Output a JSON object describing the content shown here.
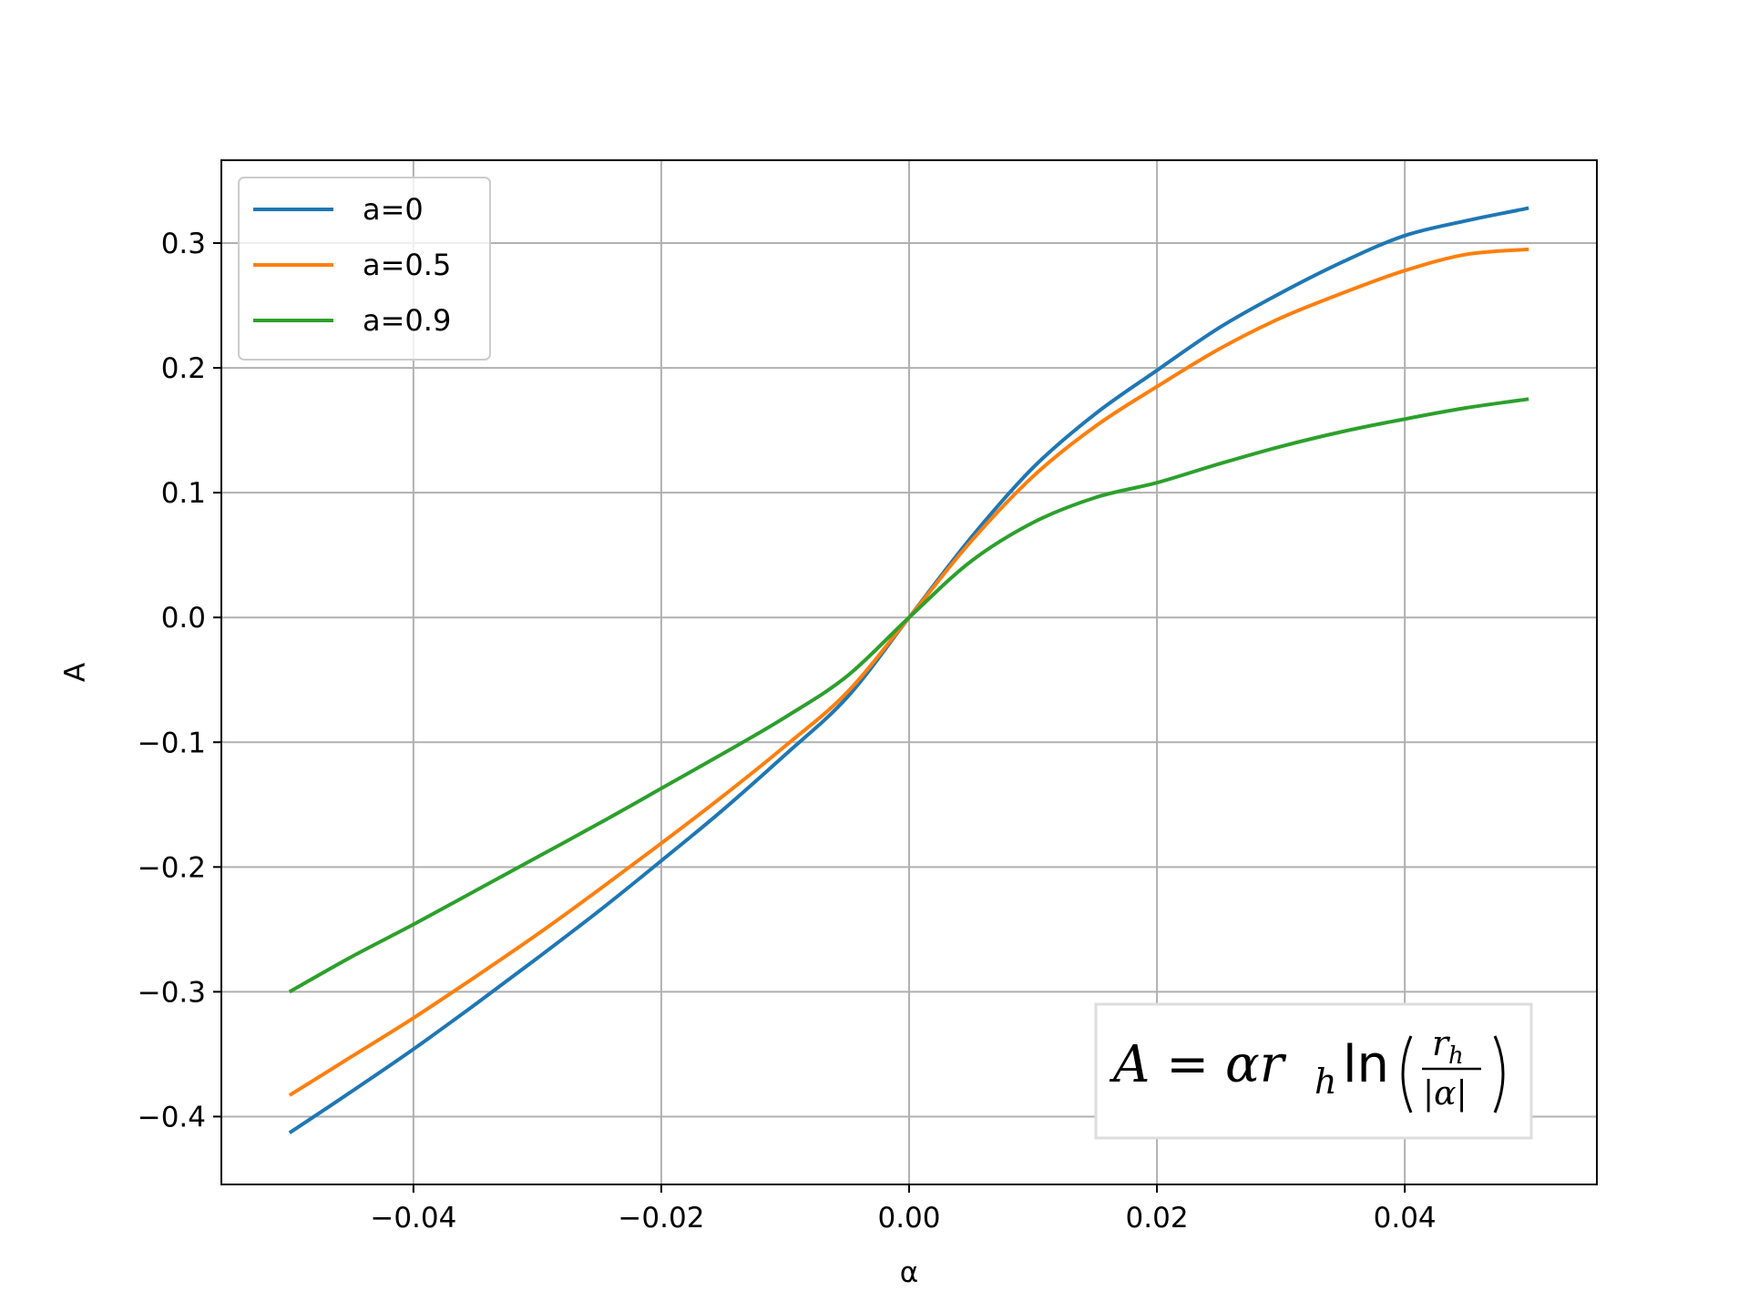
{
  "chart_data": {
    "type": "line",
    "xlabel": "α",
    "ylabel": "A",
    "xlim": [
      -0.0555,
      0.0555
    ],
    "ylim": [
      -0.4544,
      0.3664
    ],
    "xticks": [
      -0.04,
      -0.02,
      0.0,
      0.02,
      0.04
    ],
    "xtick_labels": [
      "−0.04",
      "−0.02",
      "0.00",
      "0.02",
      "0.04"
    ],
    "yticks": [
      -0.4,
      -0.3,
      -0.2,
      -0.1,
      0.0,
      0.1,
      0.2,
      0.3
    ],
    "ytick_labels": [
      "−0.4",
      "−0.3",
      "−0.2",
      "−0.1",
      "0.0",
      "0.1",
      "0.2",
      "0.3"
    ],
    "grid": true,
    "legend_position": "upper-left",
    "x": [
      -0.05,
      -0.045,
      -0.04,
      -0.035,
      -0.03,
      -0.025,
      -0.02,
      -0.015,
      -0.01,
      -0.005,
      0.0,
      0.005,
      0.01,
      0.015,
      0.02,
      0.025,
      0.03,
      0.035,
      0.04,
      0.045,
      0.05
    ],
    "series": [
      {
        "name": "a=0",
        "color": "#1f77b4",
        "values": [
          -0.413,
          -0.38,
          -0.346,
          -0.31,
          -0.273,
          -0.235,
          -0.195,
          -0.154,
          -0.11,
          -0.064,
          0.0,
          0.064,
          0.12,
          0.163,
          0.198,
          0.232,
          0.26,
          0.285,
          0.306,
          0.318,
          0.328
        ]
      },
      {
        "name": "a=0.5",
        "color": "#ff7f0e",
        "values": [
          -0.383,
          -0.352,
          -0.321,
          -0.288,
          -0.254,
          -0.218,
          -0.181,
          -0.143,
          -0.103,
          -0.06,
          0.0,
          0.061,
          0.113,
          0.153,
          0.185,
          0.215,
          0.24,
          0.26,
          0.278,
          0.291,
          0.295
        ]
      },
      {
        "name": "a=0.9",
        "color": "#2ca02c",
        "values": [
          -0.3,
          -0.272,
          -0.246,
          -0.219,
          -0.192,
          -0.165,
          -0.137,
          -0.109,
          -0.08,
          -0.047,
          0.0,
          0.045,
          0.076,
          0.096,
          0.108,
          0.123,
          0.137,
          0.149,
          0.159,
          0.168,
          0.175
        ]
      }
    ],
    "annotation": {
      "base": "A = αr",
      "sub": "h",
      "fn": "ln",
      "num": "r",
      "num_sub": "h",
      "den": "|α|",
      "position": "lower-right"
    }
  }
}
